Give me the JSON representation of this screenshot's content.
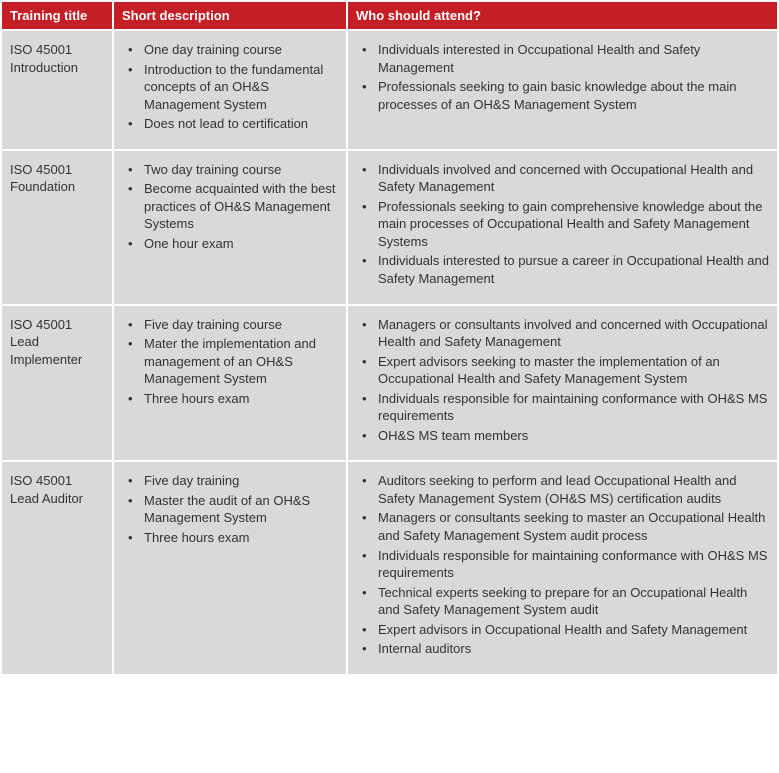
{
  "colors": {
    "header_bg": "#c41e26",
    "header_text": "#ffffff",
    "cell_bg": "#d9d9d9",
    "text": "#333333"
  },
  "columns": [
    {
      "key": "title",
      "label": "Training title"
    },
    {
      "key": "desc",
      "label": "Short description"
    },
    {
      "key": "who",
      "label": "Who should attend?"
    }
  ],
  "rows": [
    {
      "title": "ISO 45001 Introduction",
      "desc": [
        "One day training course",
        "Introduction to the fundamental concepts of an OH&S Management System",
        "Does not lead to certification"
      ],
      "who": [
        "Individuals interested in Occupational Health and Safety Management",
        "Professionals seeking to gain basic knowledge about the main processes of an OH&S Management System"
      ]
    },
    {
      "title": "ISO 45001 Foundation",
      "desc": [
        "Two day training course",
        "Become acquainted with the best practices of OH&S Management Systems",
        "One hour exam"
      ],
      "who": [
        "Individuals involved and concerned with Occupational Health and Safety Management",
        "Professionals seeking to gain comprehensive knowledge about the main processes of Occupational Health and Safety Management Systems",
        "Individuals interested to pursue a career in Occupational Health and Safety Management"
      ]
    },
    {
      "title": "ISO 45001 Lead Implementer",
      "desc": [
        "Five day training course",
        "Mater the implementation and management of an OH&S Management System",
        "Three hours exam"
      ],
      "who": [
        "Managers or consultants involved and concerned with Occupational Health and Safety Management",
        "Expert advisors seeking to master the implementation of an Occupational Health and Safety Management System",
        "Individuals responsible for maintaining conformance with OH&S MS requirements",
        "OH&S MS team members"
      ]
    },
    {
      "title": "ISO 45001 Lead Auditor",
      "desc": [
        "Five day training",
        "Master the audit of an OH&S Management System",
        "Three hours exam"
      ],
      "who": [
        "Auditors seeking to perform and lead Occupational Health and Safety Management System (OH&S MS) certification audits",
        "Managers or consultants seeking to master an Occupational Health and Safety Management System audit process",
        "Individuals responsible for maintaining conformance with OH&S MS requirements",
        "Technical experts seeking to prepare for an Occupational Health and Safety Management System audit",
        "Expert advisors in Occupational Health and Safety Management",
        "Internal auditors"
      ]
    }
  ]
}
